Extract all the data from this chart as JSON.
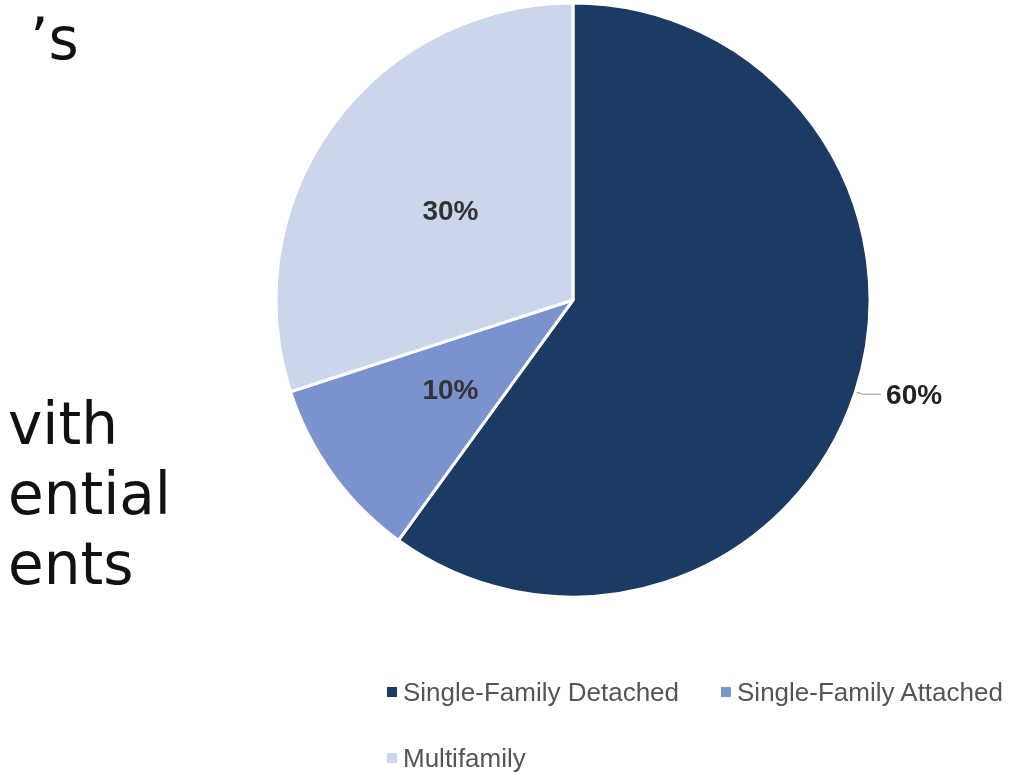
{
  "chart_data": {
    "type": "pie",
    "categories": [
      "Single-Family Detached",
      "Single-Family Attached",
      "Multifamily"
    ],
    "values": [
      60,
      10,
      30
    ],
    "colors": [
      "#1b3a64",
      "#7a93cf",
      "#ccd6ea"
    ],
    "value_labels": [
      "60%",
      "10%",
      "30%"
    ],
    "legend": "bottom",
    "annotations": [
      "’s",
      "vith",
      "ential",
      "ents"
    ]
  }
}
